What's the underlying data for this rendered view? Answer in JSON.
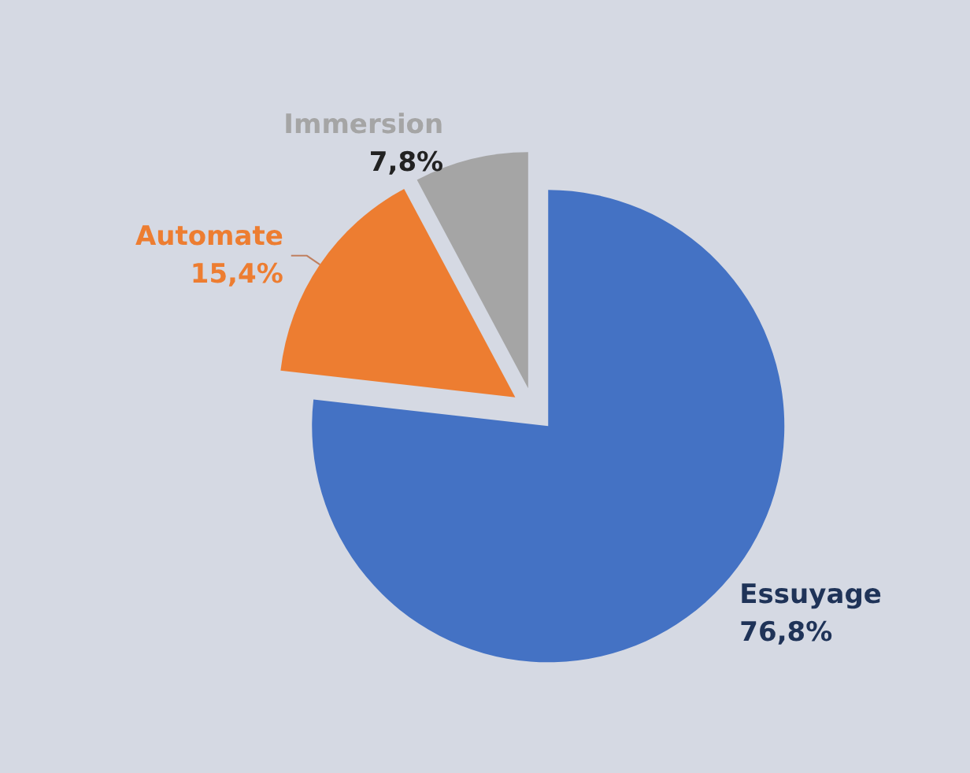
{
  "chart_data": {
    "type": "pie",
    "categories": [
      "Essuyage",
      "Automate",
      "Immersion"
    ],
    "values": [
      76.8,
      15.4,
      7.8
    ],
    "value_labels": [
      "76,8%",
      "15,4%",
      "7,8%"
    ],
    "colors": [
      "#4472c4",
      "#ed7d31",
      "#a5a5a5"
    ],
    "legend": false
  }
}
